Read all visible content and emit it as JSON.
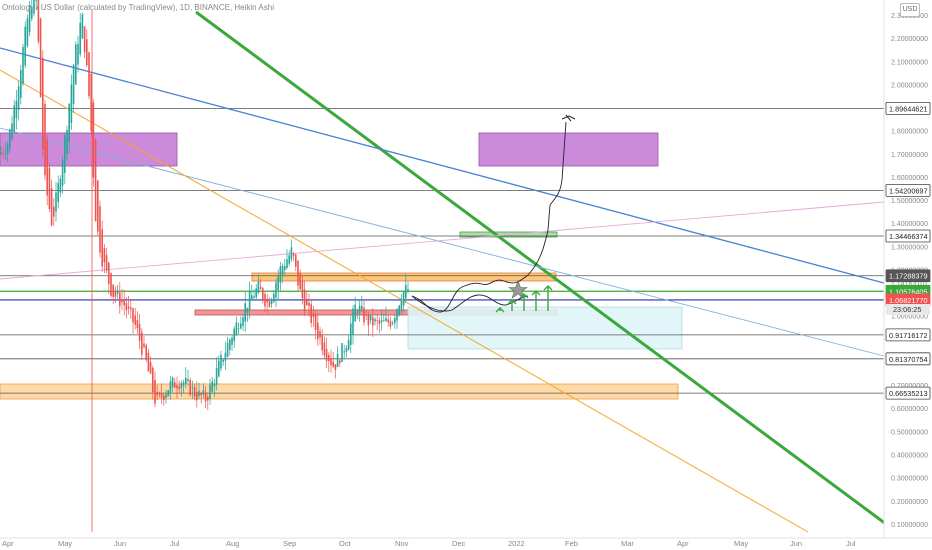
{
  "header": {
    "title": "Ontology / US Dollar (calculated by TradingView), 1D, BINANCE, Heikin Ashi",
    "currency": "USD"
  },
  "colors": {
    "up": "#26a69a",
    "down": "#ef5350",
    "green_trend": "#3aa83a",
    "blue_trend": "#4a80d6",
    "light_blue_trend": "#7fb0e0",
    "orange_trend": "#f5a623",
    "pink_trend": "#e6a8d8",
    "purple_zone": "#c77dd6",
    "orange_zone": "#ffd6a0",
    "red_zone": "#f08c8c",
    "cyan_zone": "#dff4f7"
  },
  "chart_data": {
    "type": "candlestick",
    "title": "Ontology / US Dollar (calculated by TradingView), 1D, BINANCE, Heikin Ashi",
    "yscale": "linear",
    "ylim": [
      0.08,
      2.48
    ],
    "y_ticks": [
      "2.40000000",
      "2.30000000",
      "2.20000000",
      "2.10000000",
      "2.00000000",
      "1.80000000",
      "1.70000000",
      "1.60000000",
      "1.50000000",
      "1.40000000",
      "1.30000000",
      "1.20000000",
      "1.14163107",
      "1.00000000",
      "0.70000000",
      "0.60000000",
      "0.50000000",
      "0.40000000",
      "0.30000000",
      "0.20000000",
      "0.10000000"
    ],
    "x_ticks": [
      "Apr",
      "May",
      "Jun",
      "Jul",
      "Aug",
      "Sep",
      "Oct",
      "Nov",
      "Dec",
      "2022",
      "Feb",
      "Mar",
      "Apr",
      "May",
      "Jun",
      "Jul"
    ],
    "horizontal_levels": [
      {
        "value": "1.89644621",
        "color": "#555555"
      },
      {
        "value": "1.54200697",
        "color": "#555555"
      },
      {
        "value": "1.34466374",
        "color": "#555555"
      },
      {
        "value": "1.17288379",
        "color": "#555555"
      },
      {
        "value": "1.10576405",
        "color": "#3aa83a"
      },
      {
        "value": "1.06821770",
        "color": "#2233aa"
      },
      {
        "value": "0.91716172",
        "color": "#555555"
      },
      {
        "value": "0.81370754",
        "color": "#555555"
      },
      {
        "value": "0.66535213",
        "color": "#555555"
      }
    ],
    "price_tags": [
      {
        "value": "1.17288379",
        "bg": "#555555"
      },
      {
        "value": "1.10576405",
        "bg": "#3aa83a"
      },
      {
        "value": "1.06821770",
        "bg": "#ef5350"
      },
      {
        "value": "23:06:25",
        "bg": "#e8e8e8"
      }
    ],
    "grid": false
  }
}
